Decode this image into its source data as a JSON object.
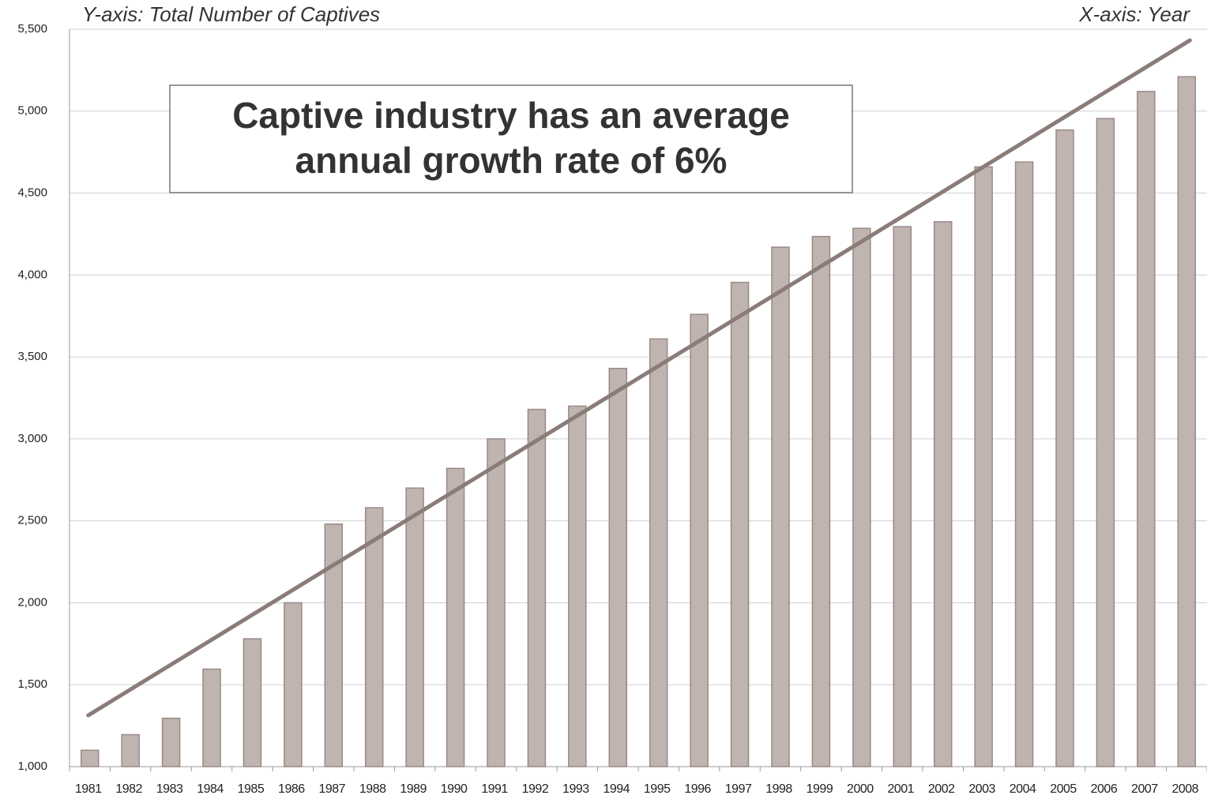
{
  "chart_data": {
    "type": "bar",
    "y_axis_label": "Y-axis: Total Number of Captives",
    "x_axis_label": "X-axis: Year",
    "annotation": [
      "Captive industry has an average",
      "annual growth rate of 6%"
    ],
    "categories": [
      "1981",
      "1982",
      "1983",
      "1984",
      "1985",
      "1986",
      "1987",
      "1988",
      "1989",
      "1990",
      "1991",
      "1992",
      "1993",
      "1994",
      "1995",
      "1996",
      "1997",
      "1998",
      "1999",
      "2000",
      "2001",
      "2002",
      "2003",
      "2004",
      "2005",
      "2006",
      "2007",
      "2008"
    ],
    "values": [
      1100,
      1195,
      1295,
      1595,
      1780,
      2000,
      2480,
      2580,
      2700,
      2820,
      3000,
      3180,
      3200,
      3430,
      3610,
      3760,
      3955,
      4170,
      4235,
      4285,
      4295,
      4325,
      4660,
      4690,
      4885,
      4955,
      5120,
      5210
    ],
    "color": "#c0b4b0",
    "trend": {
      "start": 1313,
      "end": 5432,
      "color": "#8a7c78"
    },
    "ylim": [
      1000,
      5500
    ],
    "yticks": [
      {
        "value": 1000,
        "label": "1,000"
      },
      {
        "value": 1500,
        "label": "1,500"
      },
      {
        "value": 2000,
        "label": "2,000"
      },
      {
        "value": 2500,
        "label": "2,500"
      },
      {
        "value": 3000,
        "label": "3,000"
      },
      {
        "value": 3500,
        "label": "3,500"
      },
      {
        "value": 4000,
        "label": "4,000"
      },
      {
        "value": 4500,
        "label": "4,500"
      },
      {
        "value": 5000,
        "label": "5,000"
      },
      {
        "value": 5500,
        "label": "5,500"
      }
    ],
    "grid": true
  }
}
